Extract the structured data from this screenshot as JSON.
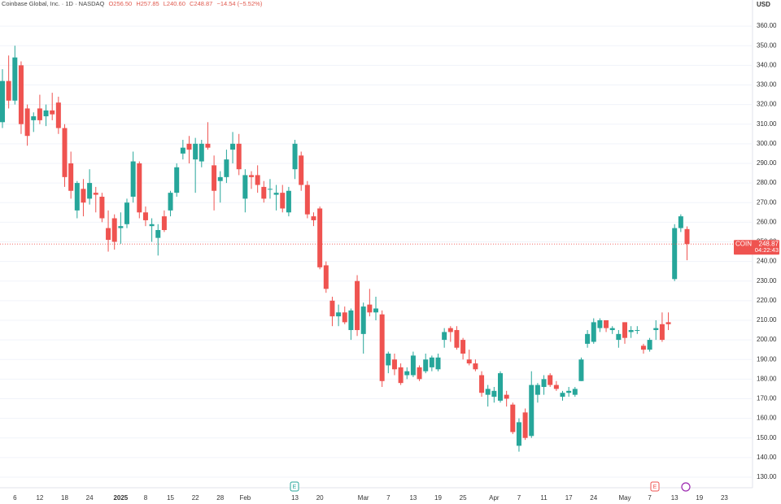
{
  "chart_data": {
    "type": "candlestick",
    "header": {
      "title": "Coinbase Global, Inc.",
      "interval": "1D",
      "exchange": "NASDAQ",
      "ohlc": [
        "O256.50",
        "H257.85",
        "L240.60",
        "C248.87"
      ],
      "change": "−14.54 (−5.52%)"
    },
    "currency": "USD",
    "symbol": "COIN",
    "countdown": "04:22:43",
    "up_color": "#26a69a",
    "down_color": "#ef5350",
    "ylim": [
      124.6,
      373.3
    ],
    "yticks": [
      {
        "value": 130,
        "label": "130.00"
      },
      {
        "value": 140,
        "label": "140.00"
      },
      {
        "value": 150,
        "label": "150.00"
      },
      {
        "value": 160,
        "label": "160.00"
      },
      {
        "value": 170,
        "label": "170.00"
      },
      {
        "value": 180,
        "label": "180.00"
      },
      {
        "value": 190,
        "label": "190.00"
      },
      {
        "value": 200,
        "label": "200.00"
      },
      {
        "value": 210,
        "label": "210.00"
      },
      {
        "value": 220,
        "label": "220.00"
      },
      {
        "value": 230,
        "label": "230.00"
      },
      {
        "value": 240,
        "label": "240.00"
      },
      {
        "value": 250,
        "label": "250.00"
      },
      {
        "value": 260,
        "label": "260.00"
      },
      {
        "value": 270,
        "label": "270.00"
      },
      {
        "value": 280,
        "label": "280.00"
      },
      {
        "value": 290,
        "label": "290.00"
      },
      {
        "value": 300,
        "label": "300.00"
      },
      {
        "value": 310,
        "label": "310.00"
      },
      {
        "value": 320,
        "label": "320.00"
      },
      {
        "value": 330,
        "label": "330.00"
      },
      {
        "value": 340,
        "label": "340.00"
      },
      {
        "value": 350,
        "label": "350.00"
      },
      {
        "value": 360,
        "label": "360.00"
      }
    ],
    "grid": true,
    "last_price_label": "248.87",
    "events": [
      {
        "label": "E",
        "kind": "earnings"
      },
      {
        "label": "E",
        "kind": "earnings"
      }
    ],
    "categories": [
      null,
      null,
      "6",
      null,
      null,
      null,
      "12",
      null,
      null,
      null,
      "18",
      null,
      null,
      null,
      "24",
      null,
      null,
      null,
      null,
      "2025",
      null,
      null,
      null,
      "8",
      null,
      null,
      null,
      "15",
      null,
      null,
      null,
      "22",
      null,
      null,
      null,
      "28",
      null,
      null,
      null,
      "Feb",
      null,
      null,
      null,
      null,
      null,
      null,
      null,
      "13",
      null,
      null,
      null,
      "20",
      null,
      null,
      null,
      null,
      null,
      null,
      "Mar",
      null,
      null,
      null,
      "7",
      null,
      null,
      null,
      "13",
      null,
      null,
      null,
      "19",
      null,
      null,
      null,
      "25",
      null,
      null,
      null,
      null,
      "Apr",
      null,
      null,
      null,
      "7",
      null,
      null,
      null,
      "11",
      null,
      null,
      null,
      "17",
      null,
      null,
      null,
      "24",
      null,
      null,
      null,
      null,
      "May",
      null,
      null,
      null,
      "7",
      null,
      null,
      null,
      "13",
      null,
      null,
      null,
      "19",
      null,
      null,
      null,
      "23"
    ],
    "open": [
      311,
      332,
      322,
      340,
      318,
      312,
      318,
      314,
      317,
      321,
      308,
      290,
      266,
      277,
      272,
      275,
      273,
      257,
      262,
      257,
      259,
      273,
      290,
      265,
      258,
      252,
      263,
      266,
      275,
      295,
      300,
      292,
      291,
      300,
      289,
      281,
      283,
      297,
      300,
      272,
      284,
      284,
      278,
      277,
      274,
      275,
      265,
      287,
      294,
      279,
      263,
      267,
      238,
      220,
      212,
      214,
      205,
      230,
      203,
      218,
      214,
      213,
      187,
      190,
      186,
      182,
      182,
      186,
      184,
      186,
      185,
      200,
      206,
      205,
      200,
      190,
      188,
      182,
      172,
      171,
      169,
      172,
      167,
      146,
      163,
      151,
      172,
      176,
      182,
      177,
      171,
      173,
      172,
      179,
      198,
      199,
      206,
      210,
      205,
      200,
      209,
      204,
      205,
      197,
      195,
      205,
      208,
      209,
      231,
      257,
      256.5,
      null,
      null,
      null,
      null,
      null,
      null
    ],
    "high": [
      338,
      345,
      350,
      342,
      320,
      316,
      325,
      320,
      326,
      324,
      310,
      296,
      281,
      282,
      287,
      278,
      275,
      266,
      264,
      265,
      272,
      296,
      291,
      268,
      262,
      259,
      266,
      276,
      290,
      302,
      304,
      303,
      302,
      311,
      294,
      286,
      297,
      306,
      305,
      287,
      286,
      289,
      281,
      282,
      279,
      279,
      278,
      302,
      296,
      281,
      265,
      268,
      240,
      222,
      218,
      217,
      216,
      233,
      219,
      226,
      222,
      215,
      194,
      193,
      188,
      186,
      194,
      187,
      193,
      192,
      193,
      206,
      207,
      207,
      201,
      195,
      190,
      184,
      177,
      176,
      184,
      174,
      168,
      160,
      165,
      184,
      178,
      182,
      183,
      179,
      174,
      176,
      176,
      191,
      205,
      211,
      211,
      210,
      207,
      205,
      209,
      207,
      207,
      198,
      201,
      210,
      214,
      214,
      259,
      264,
      257.85,
      null,
      null,
      null,
      null,
      null,
      null
    ],
    "low": [
      308,
      318,
      320,
      305,
      299,
      306,
      310,
      309,
      312,
      305,
      278,
      272,
      262,
      263,
      269,
      265,
      260,
      245,
      246,
      249,
      257,
      270,
      262,
      258,
      250,
      243,
      255,
      263,
      273,
      292,
      290,
      275,
      288,
      297,
      266,
      270,
      280,
      290,
      284,
      265,
      277,
      275,
      270,
      272,
      266,
      265,
      263,
      282,
      276,
      262,
      258,
      236,
      224,
      207,
      207,
      208,
      200,
      202,
      193,
      212,
      210,
      176,
      183,
      182,
      177,
      180,
      181,
      179,
      183,
      184,
      184,
      196,
      199,
      195,
      190,
      187,
      184,
      171,
      166,
      168,
      168,
      166,
      152,
      143,
      149,
      150,
      168,
      172,
      176,
      174,
      169,
      171,
      171,
      179,
      196,
      198,
      204,
      204,
      203,
      196,
      198,
      201,
      203,
      193,
      194,
      200,
      199,
      205,
      230,
      255,
      240.6,
      null,
      null,
      null,
      null,
      null,
      null
    ],
    "close": [
      332,
      322,
      344,
      310,
      304,
      314,
      312,
      317,
      315,
      308,
      283,
      276,
      280,
      270,
      280,
      274,
      262,
      251,
      250,
      258,
      270,
      291,
      265,
      261,
      259,
      256,
      256,
      275,
      288,
      298,
      297,
      300,
      300,
      298,
      276,
      283,
      292,
      300,
      287,
      284,
      283,
      279,
      272,
      277,
      275,
      267,
      276,
      300,
      279,
      264,
      261,
      237,
      226,
      212,
      214,
      209,
      215,
      205,
      217,
      214,
      216,
      179,
      193,
      185,
      178,
      184,
      192,
      180,
      190,
      191,
      191,
      204,
      204,
      196,
      193,
      188,
      185,
      173,
      175,
      174,
      183,
      170,
      153,
      158,
      150,
      177,
      177,
      180,
      177,
      175,
      173,
      174,
      175,
      190,
      203,
      209,
      210,
      206,
      206,
      203,
      201,
      205,
      205,
      195,
      200,
      206,
      200,
      208,
      257,
      263,
      248.87,
      null,
      null,
      null,
      null,
      null,
      null
    ]
  }
}
